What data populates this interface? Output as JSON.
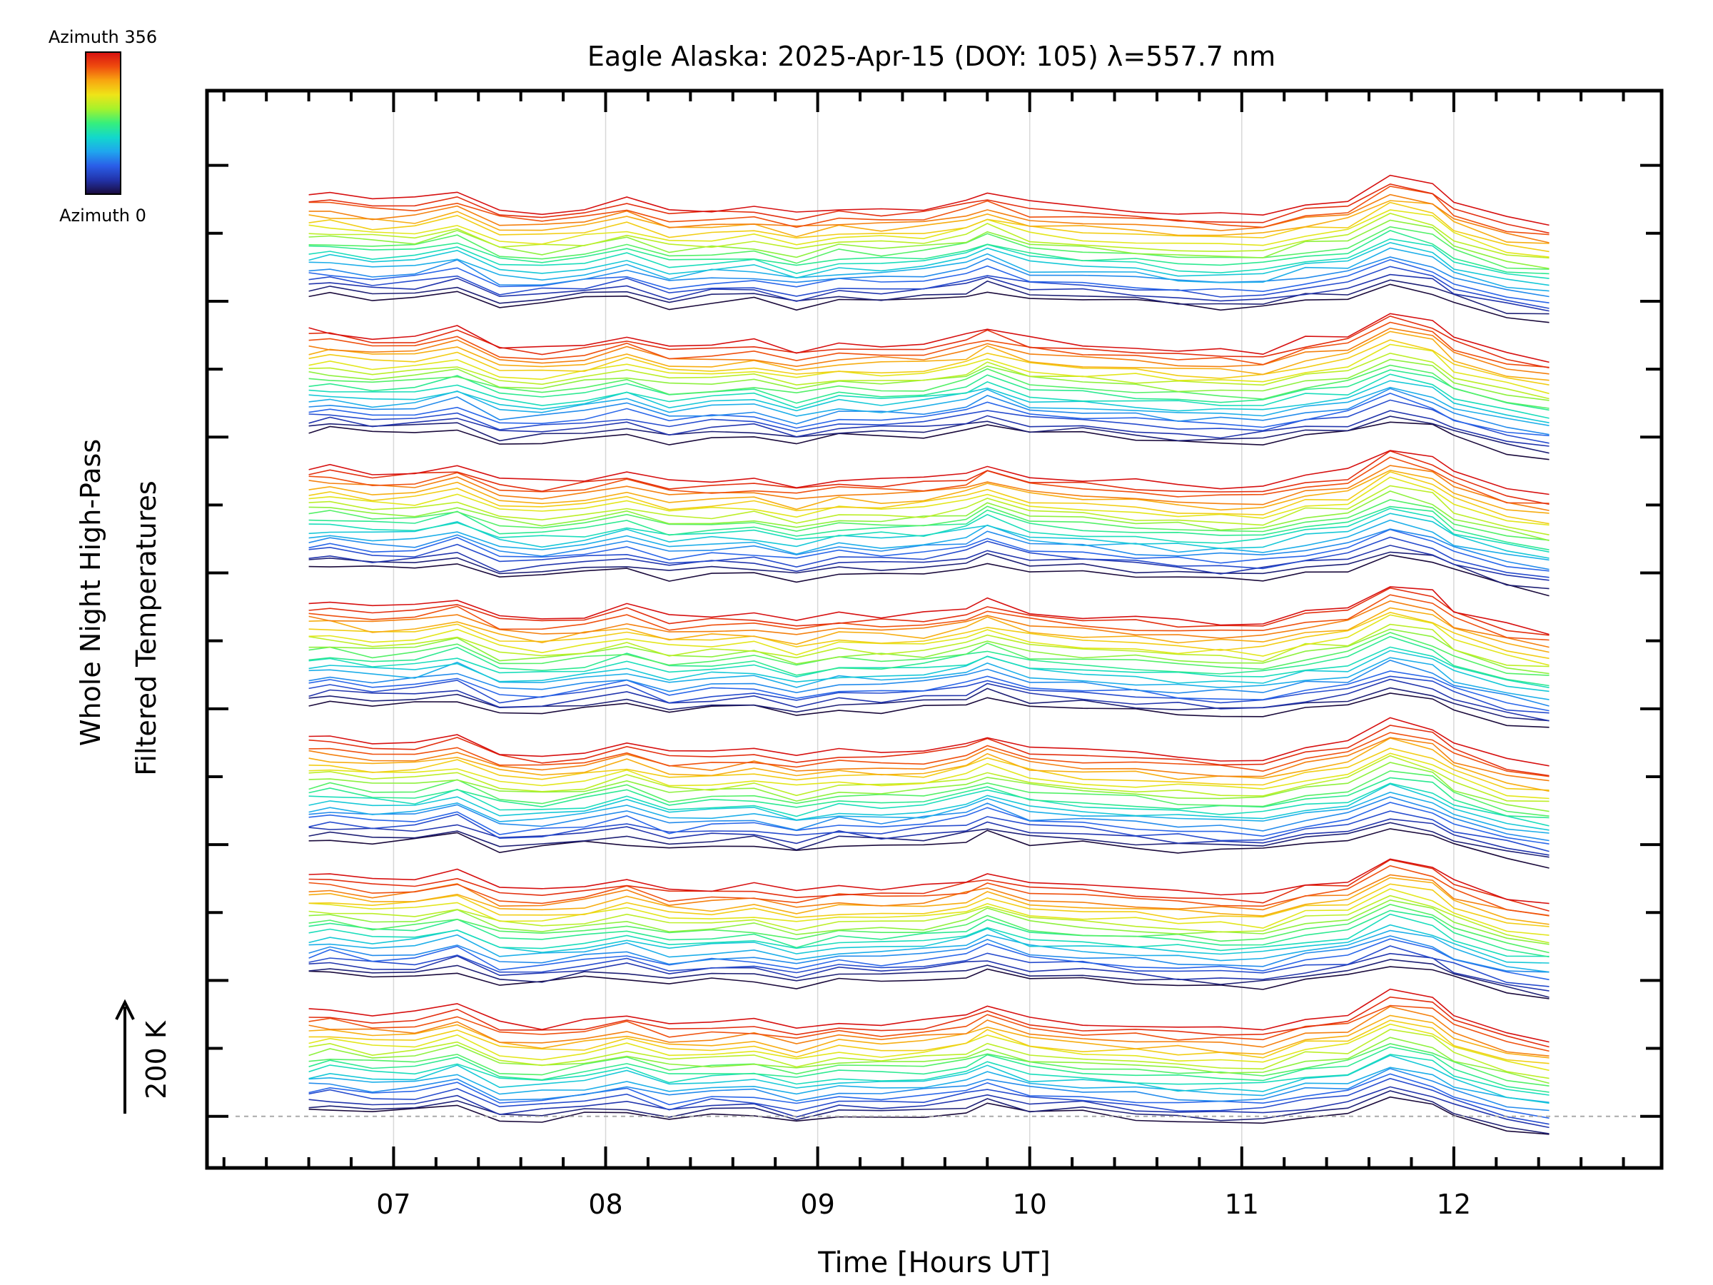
{
  "chart_data": {
    "type": "line",
    "title": "Eagle Alaska: 2025-Apr-15 (DOY: 105) λ=557.7 nm",
    "xlabel": "Time [Hours UT]",
    "ylabel_line1": "Whole Night High-Pass",
    "ylabel_line2": "Filtered Temperatures",
    "scale_label": "200 K",
    "xlim": [
      6.12,
      12.98
    ],
    "xticks": [
      7,
      8,
      9,
      10,
      11,
      12
    ],
    "xtick_labels": [
      "07",
      "08",
      "09",
      "10",
      "11",
      "12"
    ],
    "ylim": [
      -0.38,
      7.55
    ],
    "grid": "vertical lines at hour ticks",
    "legend": {
      "placement": "top-left colorbar",
      "top_label": "Azimuth 356",
      "bottom_label": "Azimuth 0"
    },
    "colors": {
      "gradient": [
        "#1a0a3c",
        "#2233aa",
        "#2a5ee8",
        "#1fa6ee",
        "#12d8cc",
        "#36ef7c",
        "#a5f22c",
        "#efe418",
        "#f8a610",
        "#ef4b0e",
        "#d61010"
      ],
      "baseline": "#aaaaaa",
      "frame": "#000000"
    },
    "x": [
      6.6,
      6.7,
      6.9,
      7.1,
      7.3,
      7.5,
      7.7,
      7.9,
      8.1,
      8.3,
      8.5,
      8.7,
      8.9,
      9.1,
      9.3,
      9.5,
      9.7,
      9.8,
      10.0,
      10.25,
      10.5,
      10.7,
      10.9,
      11.1,
      11.3,
      11.5,
      11.7,
      11.9,
      12.0,
      12.25,
      12.45
    ],
    "y_units": "offset units (one unit = 200 K scale bar)",
    "groups": 7,
    "series_per_group": 20,
    "azimuth_range": [
      0,
      356
    ],
    "group_series": [
      [
        0.08,
        0.1,
        0.05,
        0.06,
        0.13,
        -0.08,
        -0.05,
        0.02,
        0.03,
        -0.07,
        0.01,
        0.02,
        -0.09,
        0.02,
        -0.02,
        0.01,
        0.07,
        0.15,
        0.03,
        0.05,
        -0.02,
        -0.07,
        -0.1,
        -0.08,
        0.0,
        0.05,
        0.22,
        0.13,
        0.02,
        -0.19,
        -0.27
      ],
      [
        0.18,
        0.22,
        0.14,
        0.16,
        0.28,
        0.02,
        0.04,
        0.1,
        0.2,
        0.03,
        0.1,
        0.12,
        0.0,
        0.11,
        0.08,
        0.11,
        0.2,
        0.3,
        0.14,
        0.12,
        0.06,
        0.02,
        0.0,
        0.0,
        0.11,
        0.16,
        0.38,
        0.25,
        0.1,
        -0.08,
        -0.15
      ],
      [
        0.3,
        0.33,
        0.26,
        0.27,
        0.4,
        0.16,
        0.14,
        0.21,
        0.32,
        0.16,
        0.2,
        0.23,
        0.09,
        0.21,
        0.19,
        0.21,
        0.31,
        0.43,
        0.25,
        0.2,
        0.17,
        0.13,
        0.11,
        0.1,
        0.23,
        0.28,
        0.53,
        0.4,
        0.22,
        0.03,
        -0.04
      ],
      [
        0.45,
        0.46,
        0.38,
        0.39,
        0.5,
        0.28,
        0.25,
        0.31,
        0.42,
        0.27,
        0.29,
        0.33,
        0.21,
        0.31,
        0.29,
        0.31,
        0.4,
        0.52,
        0.36,
        0.3,
        0.27,
        0.23,
        0.21,
        0.2,
        0.35,
        0.4,
        0.68,
        0.55,
        0.35,
        0.15,
        0.07
      ],
      [
        0.58,
        0.57,
        0.5,
        0.52,
        0.62,
        0.4,
        0.36,
        0.42,
        0.54,
        0.39,
        0.4,
        0.44,
        0.33,
        0.42,
        0.4,
        0.42,
        0.51,
        0.63,
        0.47,
        0.41,
        0.38,
        0.34,
        0.32,
        0.31,
        0.47,
        0.52,
        0.82,
        0.7,
        0.48,
        0.27,
        0.19
      ],
      [
        0.7,
        0.7,
        0.62,
        0.64,
        0.74,
        0.51,
        0.48,
        0.53,
        0.65,
        0.5,
        0.51,
        0.55,
        0.44,
        0.53,
        0.51,
        0.53,
        0.62,
        0.73,
        0.58,
        0.52,
        0.49,
        0.45,
        0.43,
        0.42,
        0.58,
        0.63,
        0.94,
        0.83,
        0.6,
        0.39,
        0.3
      ]
    ],
    "group_offsets": [
      0,
      1.0,
      2.0,
      3.0,
      4.0,
      5.0,
      6.0
    ],
    "group_variation": "each of 7 stacked groups repeats a similar pattern; peaks near 07.3, 08.1, 09.8 and 11.7–11.9 UT"
  }
}
